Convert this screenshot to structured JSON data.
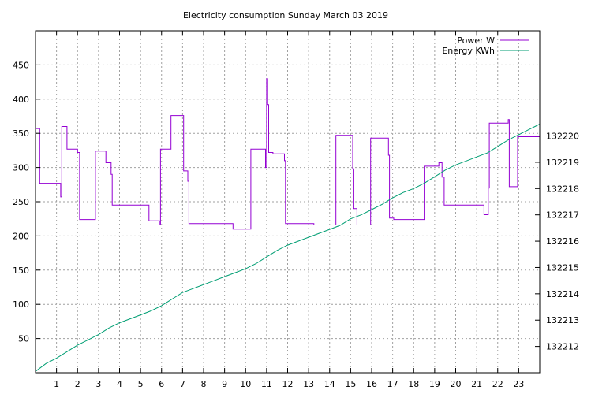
{
  "chart_data": {
    "type": "line",
    "title": "Electricity consumption Sunday March 03 2019",
    "xlabel": "",
    "ylabel": "",
    "y2label": "",
    "xlim": [
      0,
      24
    ],
    "x_ticks": [
      1,
      2,
      3,
      4,
      5,
      6,
      7,
      8,
      9,
      10,
      11,
      12,
      13,
      14,
      15,
      16,
      17,
      18,
      19,
      20,
      21,
      22,
      23
    ],
    "ylim": [
      0,
      500
    ],
    "y_ticks": [
      50,
      100,
      150,
      200,
      250,
      300,
      350,
      400,
      450
    ],
    "y2lim": [
      132211.0,
      132224.0
    ],
    "y2_ticks": [
      132212,
      132213,
      132214,
      132215,
      132216,
      132217,
      132218,
      132219,
      132220
    ],
    "grid": true,
    "legend_position": "top-right",
    "series": [
      {
        "name": "Power W",
        "axis": "left",
        "color": "#9400d3",
        "x": [
          0,
          0.2,
          0.2,
          1.2,
          1.2,
          1.25,
          1.25,
          1.5,
          1.5,
          2.0,
          2.0,
          2.1,
          2.1,
          2.85,
          2.85,
          3.35,
          3.35,
          3.6,
          3.6,
          3.65,
          3.65,
          3.7,
          3.7,
          5.4,
          5.4,
          5.9,
          5.9,
          5.95,
          5.95,
          6.45,
          6.45,
          7.05,
          7.05,
          7.25,
          7.25,
          7.3,
          7.3,
          9.4,
          9.4,
          10.25,
          10.25,
          10.95,
          10.95,
          11.0,
          11.0,
          11.05,
          11.05,
          11.1,
          11.1,
          11.3,
          11.3,
          11.85,
          11.85,
          11.9,
          11.9,
          13.25,
          13.25,
          14.3,
          14.3,
          15.1,
          15.1,
          15.15,
          15.15,
          15.3,
          15.3,
          15.95,
          15.95,
          16.8,
          16.8,
          16.85,
          16.85,
          17.05,
          17.05,
          18.5,
          18.5,
          19.2,
          19.2,
          19.35,
          19.35,
          19.45,
          19.45,
          21.35,
          21.35,
          21.55,
          21.55,
          21.6,
          21.6,
          22.5,
          22.5,
          22.55,
          22.55,
          22.95,
          22.95,
          24
        ],
        "y": [
          357,
          357,
          277,
          277,
          257,
          257,
          360,
          360,
          327,
          327,
          322,
          322,
          224,
          224,
          324,
          324,
          307,
          307,
          290,
          290,
          245,
          245,
          245,
          245,
          222,
          222,
          216,
          216,
          327,
          327,
          376,
          376,
          295,
          295,
          280,
          280,
          218,
          218,
          210,
          210,
          327,
          327,
          300,
          300,
          430,
          430,
          392,
          392,
          322,
          322,
          320,
          320,
          310,
          310,
          218,
          218,
          216,
          216,
          347,
          347,
          298,
          298,
          240,
          240,
          216,
          216,
          343,
          343,
          318,
          318,
          226,
          226,
          224,
          224,
          302,
          302,
          307,
          307,
          286,
          286,
          245,
          245,
          231,
          231,
          270,
          270,
          365,
          365,
          370,
          370,
          272,
          272,
          345,
          345
        ]
      },
      {
        "name": "Energy KWh",
        "axis": "right",
        "color": "#009e73",
        "x": [
          0,
          0.5,
          1,
          1.5,
          2,
          2.5,
          3,
          3.5,
          4,
          4.5,
          5,
          5.5,
          6,
          6.5,
          7,
          7.5,
          8,
          8.5,
          9,
          9.5,
          10,
          10.5,
          11,
          11.5,
          12,
          12.5,
          13,
          13.5,
          14,
          14.5,
          15,
          15.5,
          16,
          16.5,
          17,
          17.5,
          18,
          18.5,
          19,
          19.5,
          20,
          20.5,
          21,
          21.5,
          22,
          22.5,
          23,
          23.5,
          24
        ],
        "y": [
          132211.05,
          132211.35,
          132211.55,
          132211.8,
          132212.05,
          132212.25,
          132212.45,
          132212.7,
          132212.9,
          132213.05,
          132213.2,
          132213.35,
          132213.55,
          132213.8,
          132214.05,
          132214.2,
          132214.35,
          132214.5,
          132214.65,
          132214.8,
          132214.95,
          132215.15,
          132215.4,
          132215.65,
          132215.85,
          132216.0,
          132216.15,
          132216.3,
          132216.45,
          132216.6,
          132216.85,
          132217.0,
          132217.2,
          132217.4,
          132217.65,
          132217.85,
          132218.0,
          132218.2,
          132218.45,
          132218.7,
          132218.9,
          132219.05,
          132219.2,
          132219.35,
          132219.6,
          132219.85,
          132220.05,
          132220.25,
          132220.45
        ]
      }
    ]
  }
}
